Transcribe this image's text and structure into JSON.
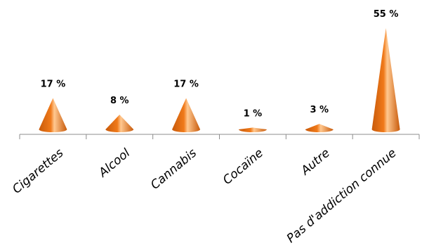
{
  "chart_data": {
    "type": "bar",
    "shape": "cone",
    "categories": [
      "Cigarettes",
      "Alcool",
      "Cannabis",
      "Cocaïne",
      "Autre",
      "Pas d'addiction connue"
    ],
    "values": [
      17,
      8,
      17,
      1,
      3,
      55
    ],
    "data_labels": [
      "17 %",
      "8 %",
      "17 %",
      "1 %",
      "3 %",
      "55 %"
    ],
    "unit": "%",
    "ylim": [
      0,
      55
    ],
    "grid": false,
    "legend": "none",
    "bar_color": "#f07a1a",
    "bar_highlight": "#ffc890",
    "bar_shadow": "#c85a0a",
    "axis_color": "#8c8c8c"
  }
}
